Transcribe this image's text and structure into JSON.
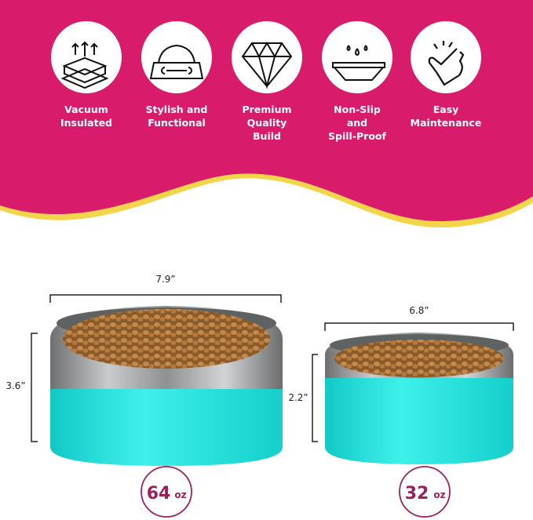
{
  "colors": {
    "banner": "#D81B6A",
    "wave_edge": "#F2D54A",
    "bowl_teal": "#1EE3DE",
    "capacity_accent": "#9C1F5E"
  },
  "features": [
    {
      "icon": "insulation-layers-icon",
      "lines": [
        "Vacuum",
        "Insulated"
      ]
    },
    {
      "icon": "dog-bowl-bone-icon",
      "lines": [
        "Stylish and",
        "Functional"
      ]
    },
    {
      "icon": "diamond-icon",
      "lines": [
        "Premium",
        "Quality",
        "Build"
      ]
    },
    {
      "icon": "drops-dish-icon",
      "lines": [
        "Non-Slip",
        "and",
        "Spill-Proof"
      ]
    },
    {
      "icon": "finger-tap-icon",
      "lines": [
        "Easy",
        "Maintenance"
      ]
    }
  ],
  "bowls": [
    {
      "width": "7.9”",
      "height": "3.6”",
      "capacity": "64",
      "unit": "oz"
    },
    {
      "width": "6.8”",
      "height": "2.2”",
      "capacity": "32",
      "unit": "oz"
    }
  ]
}
